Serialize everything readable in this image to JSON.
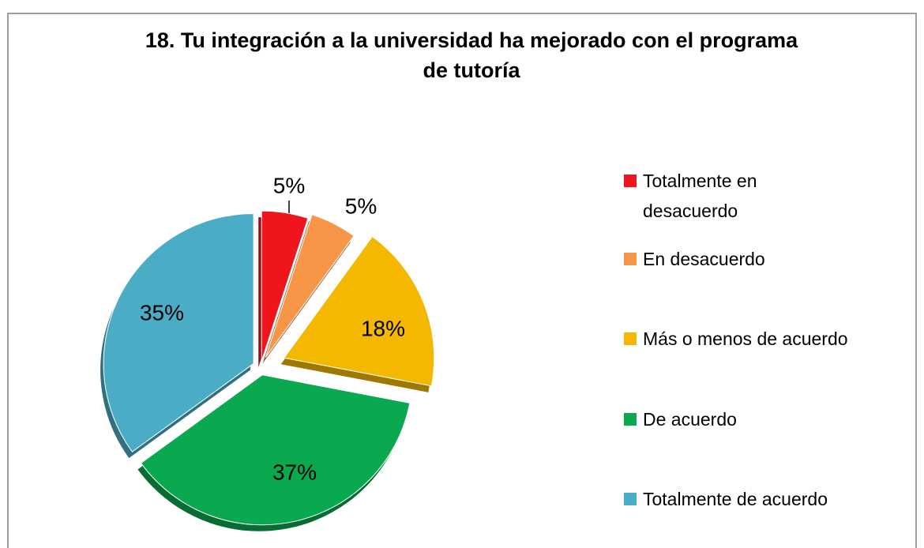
{
  "chart_data": {
    "type": "pie",
    "title": "18. Tu integración a la universidad ha mejorado con el programa de tutoría",
    "categories": [
      "Totalmente en desacuerdo",
      "En desacuerdo",
      "Más o menos de acuerdo",
      "De acuerdo",
      "Totalmente de acuerdo"
    ],
    "values": [
      5,
      5,
      18,
      37,
      35
    ],
    "value_labels": [
      "5%",
      "5%",
      "18%",
      "37%",
      "35%"
    ],
    "colors": [
      "#f0141c",
      "#f79646",
      "#f5b800",
      "#0aa84f",
      "#4bacc6"
    ],
    "legend": "right"
  }
}
